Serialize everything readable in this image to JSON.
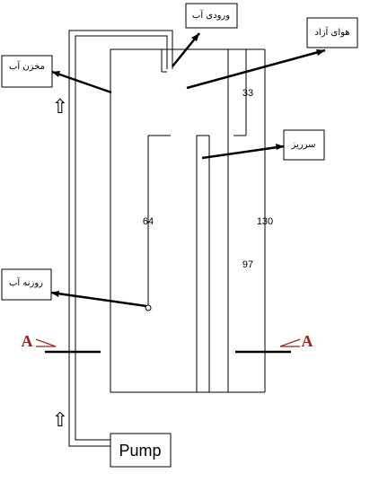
{
  "labels": {
    "water_inlet": "ورودی آب",
    "free_air": "هوای آزاد",
    "water_tank": "مخزن آب",
    "overflow": "سرریز",
    "water_orifice": "روزنه آب"
  },
  "dimensions": {
    "d33": "33",
    "d64": "64",
    "d130": "130",
    "d97": "97"
  },
  "pump_label": "Pump",
  "section": {
    "left": "A",
    "right": "A"
  },
  "flow_arrow_glyph": "⇧",
  "colors": {
    "line": "#000000",
    "section": "#a02020"
  }
}
